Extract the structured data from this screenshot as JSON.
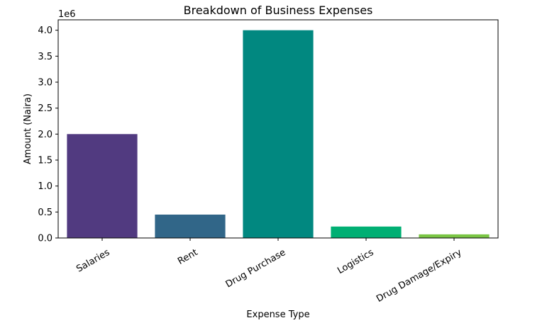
{
  "chart_data": {
    "type": "bar",
    "title": "Breakdown of Business Expenses",
    "xlabel": "Expense Type",
    "ylabel": "Amount (Naira)",
    "y_offset_label": "1e6",
    "y_scale": 1000000,
    "categories": [
      "Salaries",
      "Rent",
      "Drug Purchase",
      "Logistics",
      "Drug Damage/Expiry"
    ],
    "values": [
      2000000,
      450000,
      4000000,
      220000,
      70000
    ],
    "colors": [
      "#513a80",
      "#316688",
      "#018880",
      "#00af73",
      "#7ac544"
    ],
    "yticks": [
      0,
      500000,
      1000000,
      1500000,
      2000000,
      2500000,
      3000000,
      3500000,
      4000000
    ],
    "ytick_labels": [
      "0.0",
      "0.5",
      "1.0",
      "1.5",
      "2.0",
      "2.5",
      "3.0",
      "3.5",
      "4.0"
    ],
    "ylim": [
      0,
      4200000
    ],
    "grid": false,
    "legend": "none"
  }
}
